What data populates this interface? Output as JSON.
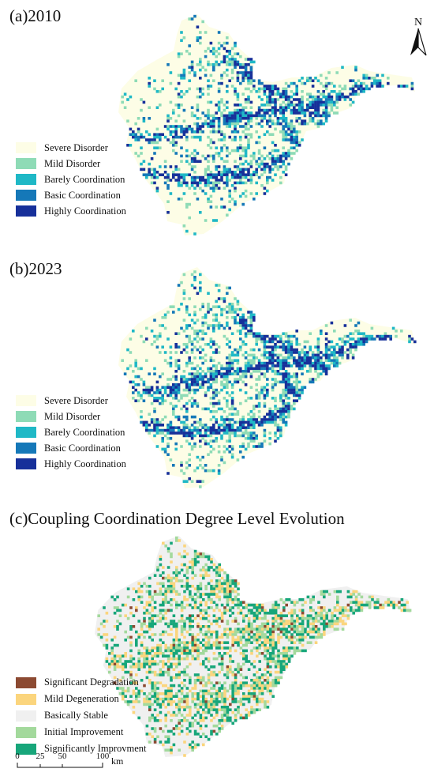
{
  "panels": [
    {
      "id": "a",
      "title": "(a)2010",
      "legend": [
        {
          "label": "Severe Disorder",
          "color": "#fdfde6"
        },
        {
          "label": "Mild Disorder",
          "color": "#8edbb6"
        },
        {
          "label": "Barely Coordination",
          "color": "#1fb8c6"
        },
        {
          "label": "Basic Coordination",
          "color": "#1578b8"
        },
        {
          "label": "Highly Coordination",
          "color": "#17309a"
        }
      ]
    },
    {
      "id": "b",
      "title": "(b)2023",
      "legend": [
        {
          "label": "Severe Disorder",
          "color": "#fdfde6"
        },
        {
          "label": "Mild Disorder",
          "color": "#8edbb6"
        },
        {
          "label": "Barely Coordination",
          "color": "#1fb8c6"
        },
        {
          "label": "Basic Coordination",
          "color": "#1578b8"
        },
        {
          "label": "Highly Coordination",
          "color": "#17309a"
        }
      ]
    },
    {
      "id": "c",
      "title": "(c)Coupling Coordination Degree Level Evolution",
      "legend": [
        {
          "label": "Significant Degradation",
          "color": "#8c4a32"
        },
        {
          "label": "Mild Degeneration",
          "color": "#fbd57d"
        },
        {
          "label": "Basically Stable",
          "color": "#f0f0f0"
        },
        {
          "label": "Initial Improvement",
          "color": "#a3d99c"
        },
        {
          "label": "Significantly Improvment",
          "color": "#17a67a"
        }
      ]
    }
  ],
  "north_arrow": {
    "label": "N"
  },
  "scale_bar": {
    "ticks": [
      "0",
      "25",
      "50",
      "100"
    ],
    "unit": "km"
  }
}
